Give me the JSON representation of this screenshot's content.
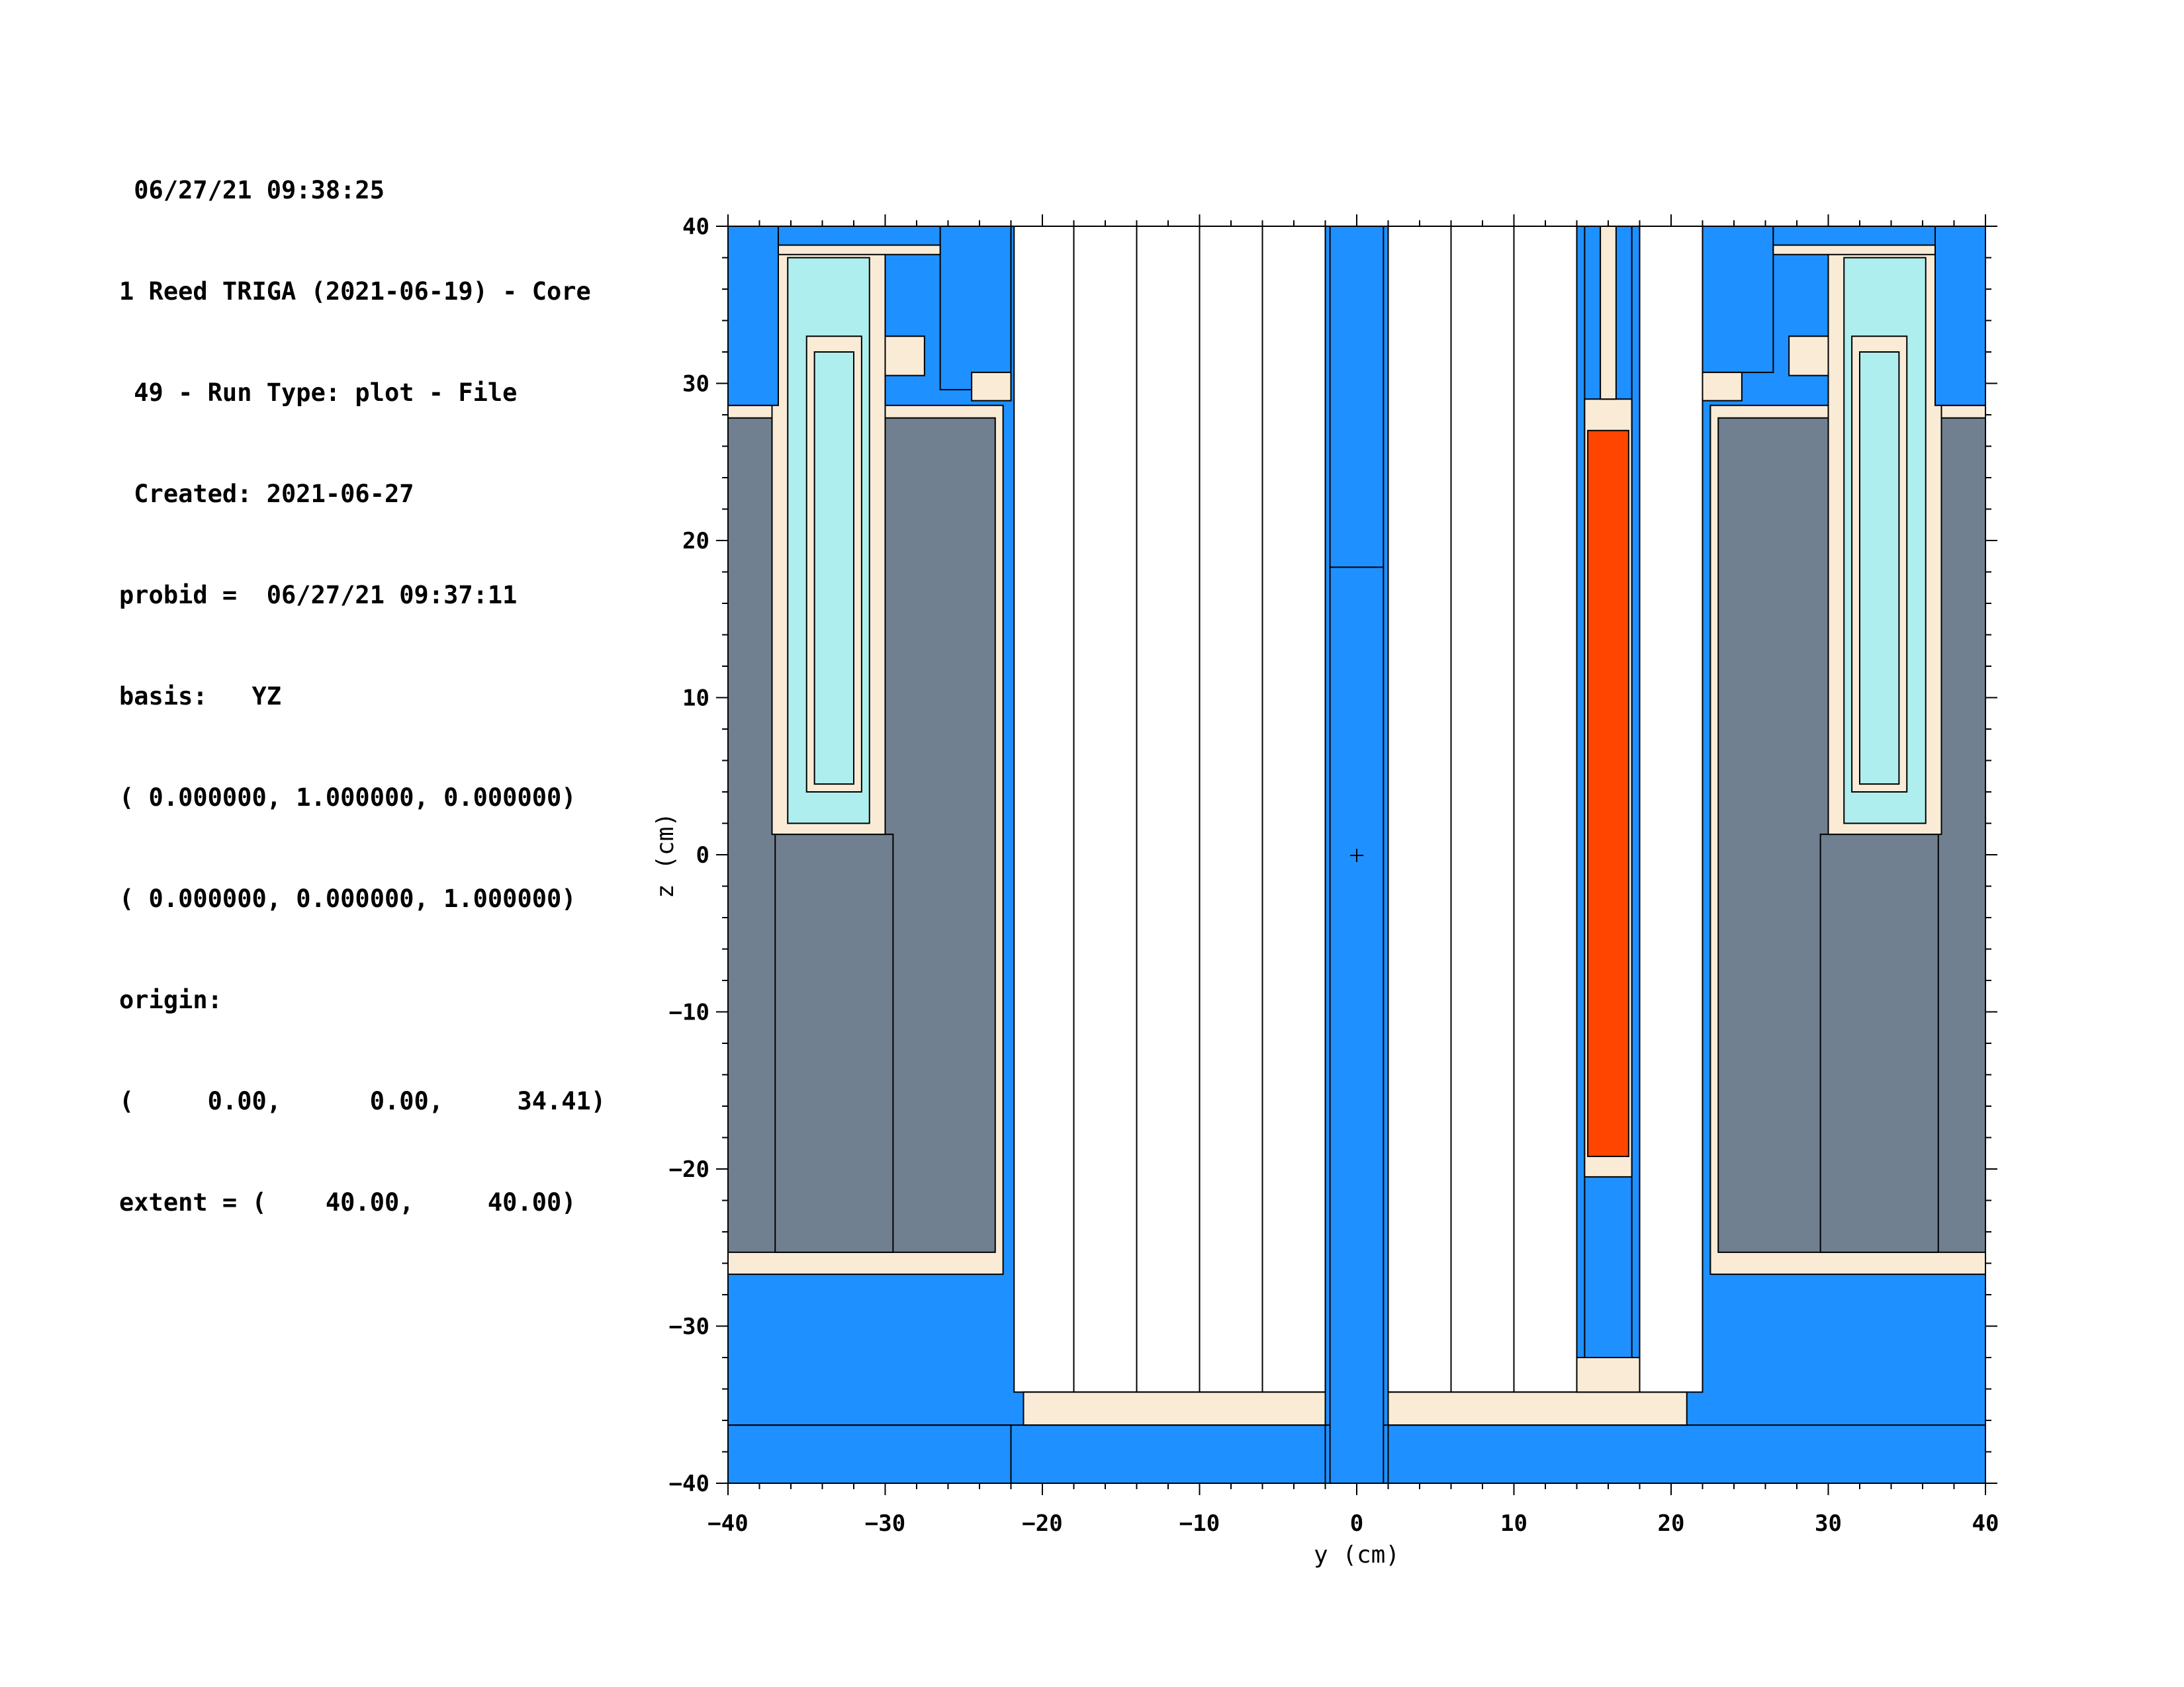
{
  "header": {
    "lines": [
      " 06/27/21 09:38:25",
      "1 Reed TRIGA (2021-06-19) - Core",
      " 49 - Run Type: plot - File",
      " Created: 2021-06-27",
      "probid =  06/27/21 09:37:11",
      "basis:   YZ",
      "( 0.000000, 1.000000, 0.000000)",
      "( 0.000000, 0.000000, 1.000000)",
      "origin:",
      "(     0.00,      0.00,     34.41)",
      "extent = (    40.00,     40.00)"
    ]
  },
  "plot": {
    "xlabel": "y (cm)",
    "ylabel": "z (cm)",
    "xlim": [
      -40,
      40
    ],
    "ylim": [
      -40,
      40
    ],
    "x_ticks": [
      -40,
      -30,
      -20,
      -10,
      0,
      10,
      20,
      30,
      40
    ],
    "y_ticks": [
      -40,
      -30,
      -20,
      -10,
      0,
      10,
      20,
      30,
      40
    ],
    "x_tick_labels": [
      "−40",
      "−30",
      "−20",
      "−10",
      "0",
      "10",
      "20",
      "30",
      "40"
    ],
    "y_tick_labels": [
      "−40",
      "−30",
      "−20",
      "−10",
      "0",
      "10",
      "20",
      "30",
      "40"
    ],
    "colors": {
      "water": "#1e90ff",
      "cladding": "#faebd7",
      "graphite": "#708090",
      "aluminum": "#afeeee",
      "fuel": "#ff4500",
      "void": "#ffffff",
      "outline": "#000000"
    },
    "regions": [
      {
        "x0": -40,
        "x1": 40,
        "y0": -40,
        "y1": 40,
        "m": "water"
      },
      {
        "x0": -40,
        "x1": -22,
        "y0": -40,
        "y1": -36.3,
        "m": "water"
      },
      {
        "x0": -40,
        "x1": -22.5,
        "y0": -26.7,
        "y1": 28.6,
        "m": "cladding"
      },
      {
        "x0": -40,
        "x1": -23.0,
        "y0": -25.3,
        "y1": 27.8,
        "m": "graphite"
      },
      {
        "x0": -37.0,
        "x1": -29.5,
        "y0": -25.3,
        "y1": 1.3,
        "m": "graphite"
      },
      {
        "x0": -37.2,
        "x1": -30.0,
        "y0": 1.3,
        "y1": 38.5,
        "m": "cladding"
      },
      {
        "x0": -36.2,
        "x1": -31.0,
        "y0": 2.0,
        "y1": 38.0,
        "m": "aluminum"
      },
      {
        "x0": -35.0,
        "x1": -31.5,
        "y0": 4.0,
        "y1": 33.0,
        "m": "cladding"
      },
      {
        "x0": -34.5,
        "x1": -32.0,
        "y0": 4.5,
        "y1": 32.0,
        "m": "aluminum"
      },
      {
        "x0": -30.0,
        "x1": -27.5,
        "y0": 30.5,
        "y1": 33.0,
        "m": "cladding"
      },
      {
        "x0": -40,
        "x1": -36.8,
        "y0": 28.6,
        "y1": 40,
        "m": "water"
      },
      {
        "x0": -26.5,
        "x1": -22.0,
        "y0": 29.6,
        "y1": 40,
        "m": "water"
      },
      {
        "x0": -36.8,
        "x1": -26.5,
        "y0": 38.8,
        "y1": 40,
        "m": "water"
      },
      {
        "x0": -36.8,
        "x1": -26.5,
        "y0": 38.2,
        "y1": 38.8,
        "m": "cladding"
      },
      {
        "x0": -24.5,
        "x1": -22.0,
        "y0": 28.9,
        "y1": 30.7,
        "m": "cladding"
      },
      {
        "x0": -21.8,
        "x1": -2.0,
        "y0": -34.2,
        "y1": 40,
        "m": "void"
      },
      {
        "x0": -21.2,
        "x1": -2.0,
        "y0": -36.3,
        "y1": -34.2,
        "m": "cladding"
      },
      {
        "x0": 2.0,
        "x1": 14.0,
        "y0": -34.2,
        "y1": 40,
        "m": "void"
      },
      {
        "x0": 2.0,
        "x1": 21.0,
        "y0": -36.3,
        "y1": -34.2,
        "m": "cladding"
      },
      {
        "x0": 18.0,
        "x1": 22.0,
        "y0": -34.2,
        "y1": 40,
        "m": "void"
      },
      {
        "x0": 14.0,
        "x1": 18.0,
        "y0": -34.2,
        "y1": -32.0,
        "m": "cladding"
      },
      {
        "x0": 14.5,
        "x1": 17.5,
        "y0": -32.0,
        "y1": 40,
        "m": "water"
      },
      {
        "x0": 14.5,
        "x1": 17.5,
        "y0": -20.5,
        "y1": 29.0,
        "m": "cladding"
      },
      {
        "x0": 14.7,
        "x1": 17.3,
        "y0": -19.2,
        "y1": 27.0,
        "m": "fuel"
      },
      {
        "x0": 15.5,
        "x1": 16.5,
        "y0": 29.0,
        "y1": 40,
        "m": "cladding"
      },
      {
        "x0": 22.5,
        "x1": 40,
        "y0": -26.7,
        "y1": 28.6,
        "m": "cladding"
      },
      {
        "x0": 23.0,
        "x1": 40,
        "y0": -25.3,
        "y1": 27.8,
        "m": "graphite"
      },
      {
        "x0": 29.5,
        "x1": 37.0,
        "y0": -25.3,
        "y1": 1.3,
        "m": "graphite"
      },
      {
        "x0": 30.0,
        "x1": 37.2,
        "y0": 1.3,
        "y1": 38.5,
        "m": "cladding"
      },
      {
        "x0": 31.0,
        "x1": 36.2,
        "y0": 2.0,
        "y1": 38.0,
        "m": "aluminum"
      },
      {
        "x0": 31.5,
        "x1": 35.0,
        "y0": 4.0,
        "y1": 33.0,
        "m": "cladding"
      },
      {
        "x0": 32.0,
        "x1": 34.5,
        "y0": 4.5,
        "y1": 32.0,
        "m": "aluminum"
      },
      {
        "x0": 27.5,
        "x1": 30.0,
        "y0": 30.5,
        "y1": 33.0,
        "m": "cladding"
      },
      {
        "x0": 36.8,
        "x1": 40,
        "y0": 28.6,
        "y1": 40,
        "m": "water"
      },
      {
        "x0": 22.0,
        "x1": 26.5,
        "y0": 30.7,
        "y1": 40,
        "m": "water"
      },
      {
        "x0": 26.5,
        "x1": 36.8,
        "y0": 38.8,
        "y1": 40,
        "m": "water"
      },
      {
        "x0": 26.5,
        "x1": 36.8,
        "y0": 38.2,
        "y1": 38.8,
        "m": "cladding"
      },
      {
        "x0": 22.0,
        "x1": 24.5,
        "y0": 30.7,
        "y1": 28.9,
        "m": "cladding"
      }
    ],
    "vlines": [
      {
        "x": -18.0,
        "y0": -34.2,
        "y1": 40
      },
      {
        "x": -14.0,
        "y0": -34.2,
        "y1": 40
      },
      {
        "x": -10.0,
        "y0": -34.2,
        "y1": 40
      },
      {
        "x": -6.0,
        "y0": -34.2,
        "y1": 40
      },
      {
        "x": 6.0,
        "y0": -34.2,
        "y1": 40
      },
      {
        "x": 10.0,
        "y0": -34.2,
        "y1": 40
      },
      {
        "x": -2.0,
        "y0": -40,
        "y1": 40
      },
      {
        "x": 2.0,
        "y0": -40,
        "y1": 40
      },
      {
        "x": -1.7,
        "y0": -40,
        "y1": 40
      },
      {
        "x": 1.7,
        "y0": -40,
        "y1": 40
      }
    ],
    "hlines": [
      {
        "y": -36.3,
        "x0": -40,
        "x1": -1.7
      },
      {
        "y": -36.3,
        "x0": 1.7,
        "x1": 40
      },
      {
        "y": 18.3,
        "x0": -1.7,
        "x1": 1.7
      }
    ]
  }
}
